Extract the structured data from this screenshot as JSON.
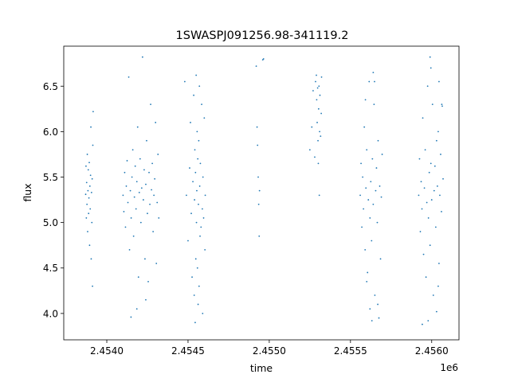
{
  "chart_data": {
    "type": "scatter",
    "title": "1SWASPJ091256.98-341119.2",
    "xlabel": "time",
    "ylabel": "flux",
    "x_offset_label": "1e6",
    "xlim": [
      2453735,
      2456168
    ],
    "ylim": [
      3.71,
      6.94
    ],
    "x_ticks": [
      2.454,
      2.4545,
      2.455,
      2.4555,
      2.456
    ],
    "x_tick_labels": [
      "2.4540",
      "2.4545",
      "2.4550",
      "2.4555",
      "2.4560"
    ],
    "y_ticks": [
      4.0,
      4.5,
      5.0,
      5.5,
      6.0,
      6.5
    ],
    "y_tick_labels": [
      "4.0",
      "4.5",
      "5.0",
      "5.5",
      "6.0",
      "6.5"
    ],
    "grid": false,
    "marker_color": "#1f77b4",
    "series": [
      {
        "points": [
          [
            2453870,
            5.31
          ],
          [
            2453872,
            5.62
          ],
          [
            2453874,
            5.05
          ],
          [
            2453876,
            5.44
          ],
          [
            2453878,
            5.2
          ],
          [
            2453880,
            5.75
          ],
          [
            2453882,
            4.9
          ],
          [
            2453884,
            5.35
          ],
          [
            2453886,
            5.58
          ],
          [
            2453888,
            5.1
          ],
          [
            2453890,
            5.27
          ],
          [
            2453892,
            5.66
          ],
          [
            2453894,
            4.75
          ],
          [
            2453896,
            5.4
          ],
          [
            2453898,
            5.15
          ],
          [
            2453900,
            5.52
          ],
          [
            2453902,
            6.05
          ],
          [
            2453904,
            4.6
          ],
          [
            2453906,
            5.33
          ],
          [
            2453908,
            5.0
          ],
          [
            2453910,
            5.48
          ],
          [
            2453912,
            4.3
          ],
          [
            2453914,
            5.85
          ],
          [
            2453916,
            6.22
          ],
          [
            2454100,
            5.3
          ],
          [
            2454105,
            5.12
          ],
          [
            2454110,
            5.55
          ],
          [
            2454115,
            4.95
          ],
          [
            2454120,
            5.4
          ],
          [
            2454125,
            5.68
          ],
          [
            2454130,
            5.22
          ],
          [
            2454135,
            6.6
          ],
          [
            2454140,
            4.7
          ],
          [
            2454145,
            5.35
          ],
          [
            2454150,
            5.05
          ],
          [
            2454155,
            5.5
          ],
          [
            2454160,
            5.8
          ],
          [
            2454165,
            4.85
          ],
          [
            2454170,
            5.28
          ],
          [
            2454175,
            5.62
          ],
          [
            2454180,
            5.15
          ],
          [
            2454185,
            5.45
          ],
          [
            2454190,
            6.05
          ],
          [
            2454195,
            4.4
          ],
          [
            2454200,
            5.33
          ],
          [
            2454205,
            5.7
          ],
          [
            2454210,
            5.0
          ],
          [
            2454215,
            5.38
          ],
          [
            2454220,
            6.82
          ],
          [
            2454225,
            5.25
          ],
          [
            2454230,
            5.58
          ],
          [
            2454235,
            4.6
          ],
          [
            2454240,
            5.42
          ],
          [
            2454245,
            5.9
          ],
          [
            2454250,
            5.1
          ],
          [
            2454255,
            4.35
          ],
          [
            2454260,
            5.55
          ],
          [
            2454265,
            5.2
          ],
          [
            2454270,
            6.3
          ],
          [
            2454275,
            5.36
          ],
          [
            2454280,
            5.65
          ],
          [
            2454285,
            4.9
          ],
          [
            2454290,
            5.3
          ],
          [
            2454295,
            5.48
          ],
          [
            2454300,
            6.1
          ],
          [
            2454305,
            4.55
          ],
          [
            2454310,
            5.22
          ],
          [
            2454315,
            5.75
          ],
          [
            2454320,
            5.05
          ],
          [
            2454149,
            3.96
          ],
          [
            2454185,
            4.05
          ],
          [
            2454240,
            4.15
          ],
          [
            2454480,
            6.55
          ],
          [
            2454490,
            5.3
          ],
          [
            2454500,
            4.8
          ],
          [
            2454510,
            5.6
          ],
          [
            2454515,
            6.1
          ],
          [
            2454520,
            5.1
          ],
          [
            2454525,
            4.4
          ],
          [
            2454530,
            5.45
          ],
          [
            2454535,
            6.4
          ],
          [
            2454538,
            4.2
          ],
          [
            2454540,
            5.25
          ],
          [
            2454542,
            5.8
          ],
          [
            2454544,
            3.9
          ],
          [
            2454546,
            5.55
          ],
          [
            2454548,
            4.6
          ],
          [
            2454550,
            6.62
          ],
          [
            2454552,
            5.0
          ],
          [
            2454554,
            5.35
          ],
          [
            2454556,
            6.0
          ],
          [
            2454558,
            4.5
          ],
          [
            2454560,
            5.7
          ],
          [
            2454562,
            4.1
          ],
          [
            2454564,
            5.2
          ],
          [
            2454566,
            5.9
          ],
          [
            2454568,
            4.3
          ],
          [
            2454570,
            6.5
          ],
          [
            2454572,
            5.4
          ],
          [
            2454574,
            4.85
          ],
          [
            2454576,
            5.65
          ],
          [
            2454580,
            4.95
          ],
          [
            2454584,
            6.3
          ],
          [
            2454588,
            5.15
          ],
          [
            2454590,
            4.0
          ],
          [
            2454592,
            5.5
          ],
          [
            2454596,
            5.05
          ],
          [
            2454600,
            6.15
          ],
          [
            2454604,
            4.7
          ],
          [
            2454606,
            5.3
          ],
          [
            2454920,
            6.72
          ],
          [
            2454925,
            6.05
          ],
          [
            2454928,
            5.85
          ],
          [
            2454932,
            5.5
          ],
          [
            2454935,
            5.2
          ],
          [
            2454938,
            4.85
          ],
          [
            2454940,
            5.35
          ],
          [
            2454960,
            6.79
          ],
          [
            2454965,
            6.8
          ],
          [
            2455250,
            5.8
          ],
          [
            2455262,
            6.05
          ],
          [
            2455270,
            6.45
          ],
          [
            2455280,
            5.72
          ],
          [
            2455285,
            6.55
          ],
          [
            2455290,
            6.62
          ],
          [
            2455292,
            6.35
          ],
          [
            2455295,
            6.1
          ],
          [
            2455298,
            6.48
          ],
          [
            2455300,
            5.9
          ],
          [
            2455302,
            5.65
          ],
          [
            2455304,
            6.25
          ],
          [
            2455306,
            6.5
          ],
          [
            2455308,
            5.3
          ],
          [
            2455310,
            6.0
          ],
          [
            2455312,
            6.4
          ],
          [
            2455316,
            5.95
          ],
          [
            2455320,
            6.2
          ],
          [
            2455322,
            6.6
          ],
          [
            2455560,
            5.3
          ],
          [
            2455565,
            5.65
          ],
          [
            2455570,
            4.95
          ],
          [
            2455575,
            5.5
          ],
          [
            2455580,
            5.15
          ],
          [
            2455585,
            6.05
          ],
          [
            2455590,
            4.7
          ],
          [
            2455595,
            5.38
          ],
          [
            2455600,
            5.8
          ],
          [
            2455605,
            4.45
          ],
          [
            2455610,
            5.25
          ],
          [
            2455615,
            6.55
          ],
          [
            2455620,
            5.05
          ],
          [
            2455625,
            5.45
          ],
          [
            2455630,
            4.8
          ],
          [
            2455635,
            5.7
          ],
          [
            2455640,
            5.2
          ],
          [
            2455645,
            6.3
          ],
          [
            2455650,
            4.2
          ],
          [
            2455655,
            5.35
          ],
          [
            2455660,
            5.6
          ],
          [
            2455665,
            5.0
          ],
          [
            2455670,
            5.9
          ],
          [
            2455675,
            3.95
          ],
          [
            2455680,
            5.4
          ],
          [
            2455685,
            4.6
          ],
          [
            2455690,
            5.28
          ],
          [
            2455695,
            5.75
          ],
          [
            2455592,
            6.35
          ],
          [
            2455640,
            6.65
          ],
          [
            2455648,
            6.55
          ],
          [
            2455600,
            4.35
          ],
          [
            2455620,
            4.05
          ],
          [
            2455632,
            3.92
          ],
          [
            2455668,
            4.1
          ],
          [
            2455920,
            5.3
          ],
          [
            2455925,
            5.7
          ],
          [
            2455930,
            4.9
          ],
          [
            2455935,
            5.45
          ],
          [
            2455940,
            5.15
          ],
          [
            2455945,
            6.15
          ],
          [
            2455950,
            4.65
          ],
          [
            2455955,
            5.38
          ],
          [
            2455960,
            5.8
          ],
          [
            2455965,
            4.4
          ],
          [
            2455970,
            5.22
          ],
          [
            2455975,
            6.5
          ],
          [
            2455980,
            5.05
          ],
          [
            2455985,
            5.55
          ],
          [
            2455990,
            4.75
          ],
          [
            2455995,
            5.65
          ],
          [
            2456000,
            5.25
          ],
          [
            2456005,
            6.3
          ],
          [
            2456010,
            4.2
          ],
          [
            2456015,
            5.35
          ],
          [
            2456020,
            5.62
          ],
          [
            2456025,
            4.95
          ],
          [
            2456030,
            5.9
          ],
          [
            2456035,
            5.4
          ],
          [
            2456040,
            6.0
          ],
          [
            2456045,
            4.55
          ],
          [
            2456050,
            5.3
          ],
          [
            2456055,
            5.75
          ],
          [
            2456060,
            5.12
          ],
          [
            2456065,
            6.28
          ],
          [
            2456070,
            5.48
          ],
          [
            2455990,
            6.82
          ],
          [
            2455995,
            6.7
          ],
          [
            2456045,
            6.55
          ],
          [
            2456062,
            6.3
          ],
          [
            2455942,
            3.88
          ],
          [
            2455978,
            3.92
          ],
          [
            2456030,
            4.02
          ],
          [
            2456040,
            4.3
          ]
        ]
      }
    ]
  }
}
